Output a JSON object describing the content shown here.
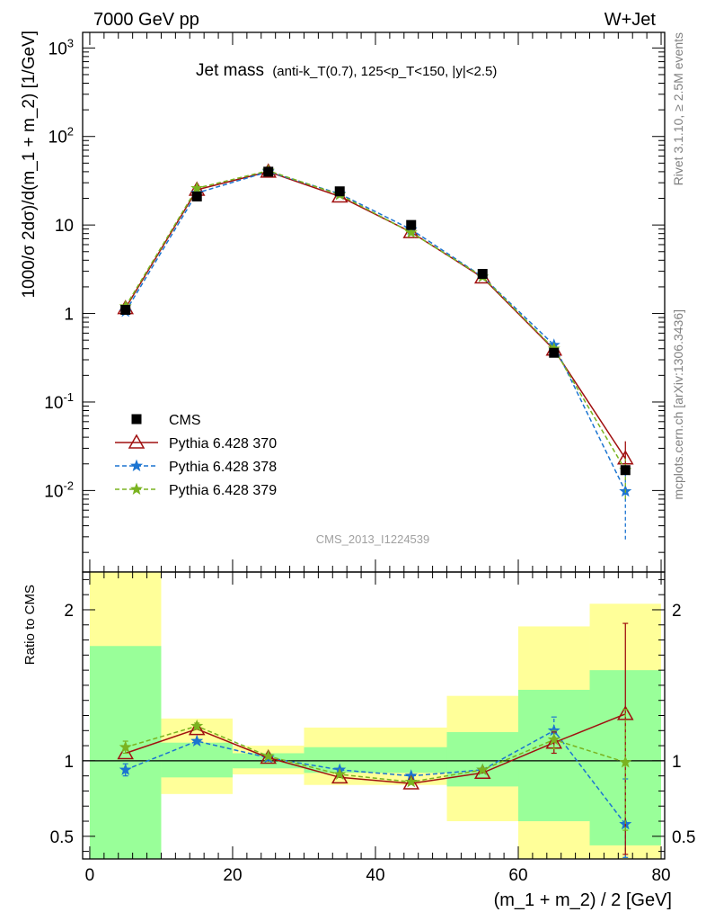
{
  "header": {
    "energy": "7000 GeV pp",
    "process": "W+Jet",
    "title_main": "Jet mass",
    "title_detail": "(anti-k_T(0.7), 125<p_T<150, |y|<2.5)",
    "watermark": "CMS_2013_I1224539",
    "side_rivet": "Rivet 3.1.10, ≥ 2.5M events",
    "side_mcplots": "mcplots.cern.ch [arXiv:1306.3436]"
  },
  "chart_data": [
    {
      "type": "scatter",
      "ylabel": "1000/σ 2dσ)/d(m_1 + m_2) [1/GeV]",
      "yscale": "log",
      "ylim": [
        0.0012,
        1500
      ],
      "xlim": [
        -1,
        80.5
      ],
      "y_ticks": [
        "10^3",
        "10^2",
        "10",
        "1",
        "10^-1",
        "10^-2"
      ],
      "legend_position": "lower-left",
      "x": [
        5,
        15,
        25,
        35,
        45,
        55,
        65,
        75
      ],
      "series": [
        {
          "name": "CMS",
          "color": "#000000",
          "marker": "square",
          "values": [
            1.1,
            21,
            40,
            24,
            10,
            2.8,
            0.36,
            0.017
          ]
        },
        {
          "name": "Pythia 6.428 370",
          "color": "#a01010",
          "marker": "triangle-open",
          "line": "solid",
          "values": [
            1.15,
            25,
            40,
            21,
            8.3,
            2.55,
            0.39,
            0.023
          ],
          "err_low": [
            0,
            0,
            0,
            0,
            0,
            0,
            0,
            0.008
          ],
          "err_high": [
            0,
            0,
            0,
            0,
            0,
            0,
            0,
            0.013
          ]
        },
        {
          "name": "Pythia 6.428 378",
          "color": "#1b74d1",
          "marker": "star",
          "line": "dashed",
          "values": [
            1.05,
            23,
            40,
            22.5,
            8.9,
            2.6,
            0.44,
            0.0098
          ],
          "err_low": [
            0,
            0,
            0,
            0,
            0,
            0,
            0,
            0.007
          ],
          "err_high": [
            0,
            0,
            0,
            0,
            0,
            0,
            0,
            0.006
          ]
        },
        {
          "name": "Pythia 6.428 379",
          "color": "#7ab320",
          "marker": "star",
          "line": "dashed",
          "values": [
            1.2,
            26,
            41,
            22,
            8.2,
            2.6,
            0.4,
            0.017
          ],
          "err_low": [
            0,
            0,
            0,
            0,
            0,
            0,
            0,
            0.009
          ],
          "err_high": [
            0,
            0,
            0,
            0,
            0,
            0,
            0,
            0.006
          ]
        }
      ]
    },
    {
      "type": "scatter",
      "ylabel": "Ratio to CMS",
      "xlabel": "(m_1 + m_2) / 2 [GeV]",
      "ylim": [
        0.35,
        2.25
      ],
      "xlim": [
        -1,
        80.5
      ],
      "x_ticks": [
        "0",
        "20",
        "40",
        "60",
        "80"
      ],
      "y_ticks": [
        "0.5",
        "1",
        "2"
      ],
      "reference_line": 1,
      "bands": [
        {
          "x0": 0,
          "x1": 10,
          "yellow": [
            0.35,
            2.25
          ],
          "green": [
            0.35,
            1.76
          ]
        },
        {
          "x0": 10,
          "x1": 20,
          "yellow": [
            0.78,
            1.28
          ],
          "green": [
            0.89,
            1.12
          ]
        },
        {
          "x0": 20,
          "x1": 30,
          "yellow": [
            0.91,
            1.1
          ],
          "green": [
            0.95,
            1.05
          ]
        },
        {
          "x0": 30,
          "x1": 50,
          "yellow": [
            0.84,
            1.22
          ],
          "green": [
            0.92,
            1.09
          ]
        },
        {
          "x0": 50,
          "x1": 60,
          "yellow": [
            0.6,
            1.43
          ],
          "green": [
            0.83,
            1.19
          ]
        },
        {
          "x0": 60,
          "x1": 70,
          "yellow": [
            0.35,
            1.89
          ],
          "green": [
            0.6,
            1.47
          ]
        },
        {
          "x0": 70,
          "x1": 80,
          "yellow": [
            0.35,
            2.04
          ],
          "green": [
            0.44,
            1.6
          ]
        }
      ],
      "x": [
        5,
        15,
        25,
        35,
        45,
        55,
        65,
        75
      ],
      "series": [
        {
          "name": "Pythia 6.428 370",
          "color": "#a01010",
          "marker": "triangle-open",
          "line": "solid",
          "values": [
            1.05,
            1.21,
            1.02,
            0.89,
            0.85,
            0.92,
            1.12,
            1.31
          ],
          "err_low": [
            0,
            0,
            0,
            0,
            0,
            0,
            0.07,
            0.93
          ],
          "err_high": [
            0,
            0,
            0,
            0,
            0,
            0,
            0.07,
            0.6
          ]
        },
        {
          "name": "Pythia 6.428 378",
          "color": "#1b74d1",
          "marker": "star",
          "line": "dashed",
          "values": [
            0.94,
            1.13,
            1.02,
            0.94,
            0.9,
            0.94,
            1.2,
            0.58
          ],
          "err_low": [
            0.04,
            0,
            0,
            0,
            0,
            0,
            0.07,
            0.22
          ],
          "err_high": [
            0.04,
            0,
            0,
            0,
            0,
            0,
            0.09,
            0.3
          ]
        },
        {
          "name": "Pythia 6.428 379",
          "color": "#7ab320",
          "marker": "star",
          "line": "dashed",
          "values": [
            1.09,
            1.23,
            1.03,
            0.91,
            0.86,
            0.94,
            1.14,
            0.99
          ],
          "err_low": [
            0.04,
            0.02,
            0,
            0,
            0,
            0,
            0.06,
            0.45
          ],
          "err_high": [
            0.04,
            0.02,
            0,
            0,
            0,
            0,
            0.06,
            0.35
          ]
        }
      ]
    }
  ]
}
